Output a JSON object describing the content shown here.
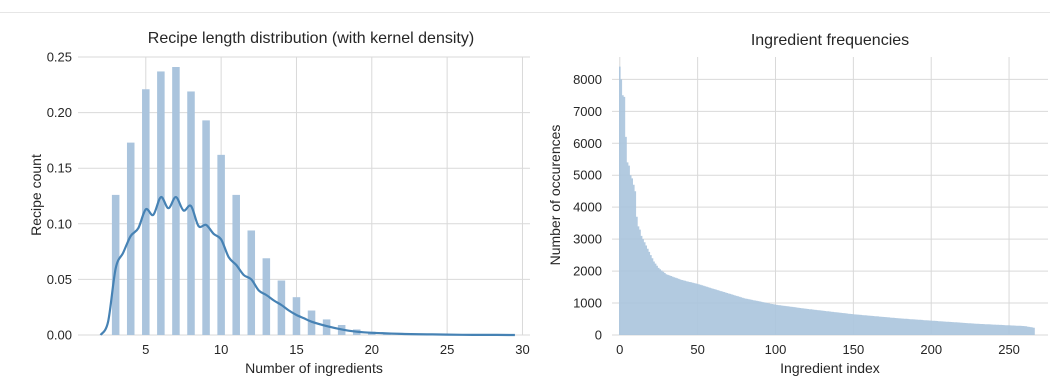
{
  "colors": {
    "bar": "#aac4dd",
    "kde": "#4682b4",
    "grid": "#d9d9d9",
    "background": "#ffffff"
  },
  "chart_data": [
    {
      "type": "bar",
      "title": "Recipe length distribution (with kernel density)",
      "xlabel": "Number of ingredients",
      "ylabel": "Recipe count",
      "xlim": [
        0.5,
        30.5
      ],
      "ylim": [
        0,
        0.25
      ],
      "xticks": [
        5,
        10,
        15,
        20,
        25,
        30
      ],
      "xtick_labels": [
        "5",
        "10",
        "15",
        "20",
        "25",
        "30"
      ],
      "yticks": [
        0,
        0.05,
        0.1,
        0.15,
        0.2,
        0.25
      ],
      "ytick_labels": [
        "0.00",
        "0.05",
        "0.10",
        "0.15",
        "0.20",
        "0.25"
      ],
      "grid": true,
      "bars": {
        "x": [
          3,
          4,
          5,
          6,
          7,
          8,
          9,
          10,
          11,
          12,
          13,
          14,
          15,
          16,
          17,
          18,
          19,
          20,
          21,
          22,
          23
        ],
        "values": [
          0.126,
          0.173,
          0.221,
          0.237,
          0.241,
          0.219,
          0.193,
          0.162,
          0.126,
          0.094,
          0.069,
          0.049,
          0.034,
          0.022,
          0.014,
          0.009,
          0.005,
          0.003,
          0.002,
          0.001,
          0.0008
        ]
      },
      "kde": {
        "x": [
          2.0,
          2.5,
          3.0,
          3.5,
          4.0,
          4.5,
          5.0,
          5.5,
          6.0,
          6.5,
          7.0,
          7.5,
          8.0,
          8.5,
          9.0,
          9.5,
          10.0,
          10.5,
          11.0,
          11.5,
          12.0,
          12.5,
          13.0,
          13.5,
          14.0,
          14.5,
          15.0,
          15.5,
          16.0,
          17.0,
          18.0,
          19.0,
          20.0,
          22.0,
          24.0,
          26.0,
          28.0,
          29.5
        ],
        "y": [
          0.0,
          0.012,
          0.06,
          0.074,
          0.089,
          0.096,
          0.113,
          0.108,
          0.124,
          0.114,
          0.124,
          0.112,
          0.116,
          0.098,
          0.099,
          0.091,
          0.086,
          0.07,
          0.063,
          0.054,
          0.05,
          0.04,
          0.036,
          0.031,
          0.027,
          0.022,
          0.018,
          0.015,
          0.012,
          0.008,
          0.005,
          0.003,
          0.002,
          0.001,
          0.0005,
          0.0002,
          0.0001,
          0.0
        ]
      }
    },
    {
      "type": "bar",
      "title": "Ingredient frequencies",
      "xlabel": "Ingredient index",
      "ylabel": "Number of occurences",
      "xlim": [
        -5,
        275
      ],
      "ylim": [
        0,
        8700
      ],
      "xticks": [
        0,
        50,
        100,
        150,
        200,
        250
      ],
      "xtick_labels": [
        "0",
        "50",
        "100",
        "150",
        "200",
        "250"
      ],
      "yticks": [
        0,
        1000,
        2000,
        3000,
        4000,
        5000,
        6000,
        7000,
        8000
      ],
      "ytick_labels": [
        "0",
        "1000",
        "2000",
        "3000",
        "4000",
        "5000",
        "6000",
        "7000",
        "8000"
      ],
      "grid": true,
      "n_ingredients": 267,
      "profile": {
        "index": [
          0,
          1,
          2,
          3,
          4,
          5,
          6,
          7,
          8,
          9,
          10,
          11,
          12,
          13,
          14,
          15,
          16,
          18,
          20,
          22,
          25,
          30,
          40,
          50,
          60,
          70,
          80,
          90,
          100,
          120,
          150,
          180,
          200,
          230,
          260,
          266
        ],
        "value": [
          8400,
          8000,
          7500,
          7450,
          6200,
          5400,
          5300,
          5000,
          4900,
          4700,
          4500,
          3700,
          3400,
          3300,
          3100,
          3000,
          2900,
          2700,
          2500,
          2300,
          2100,
          1900,
          1720,
          1600,
          1450,
          1300,
          1150,
          1050,
          950,
          820,
          650,
          520,
          450,
          350,
          280,
          230
        ]
      }
    }
  ]
}
